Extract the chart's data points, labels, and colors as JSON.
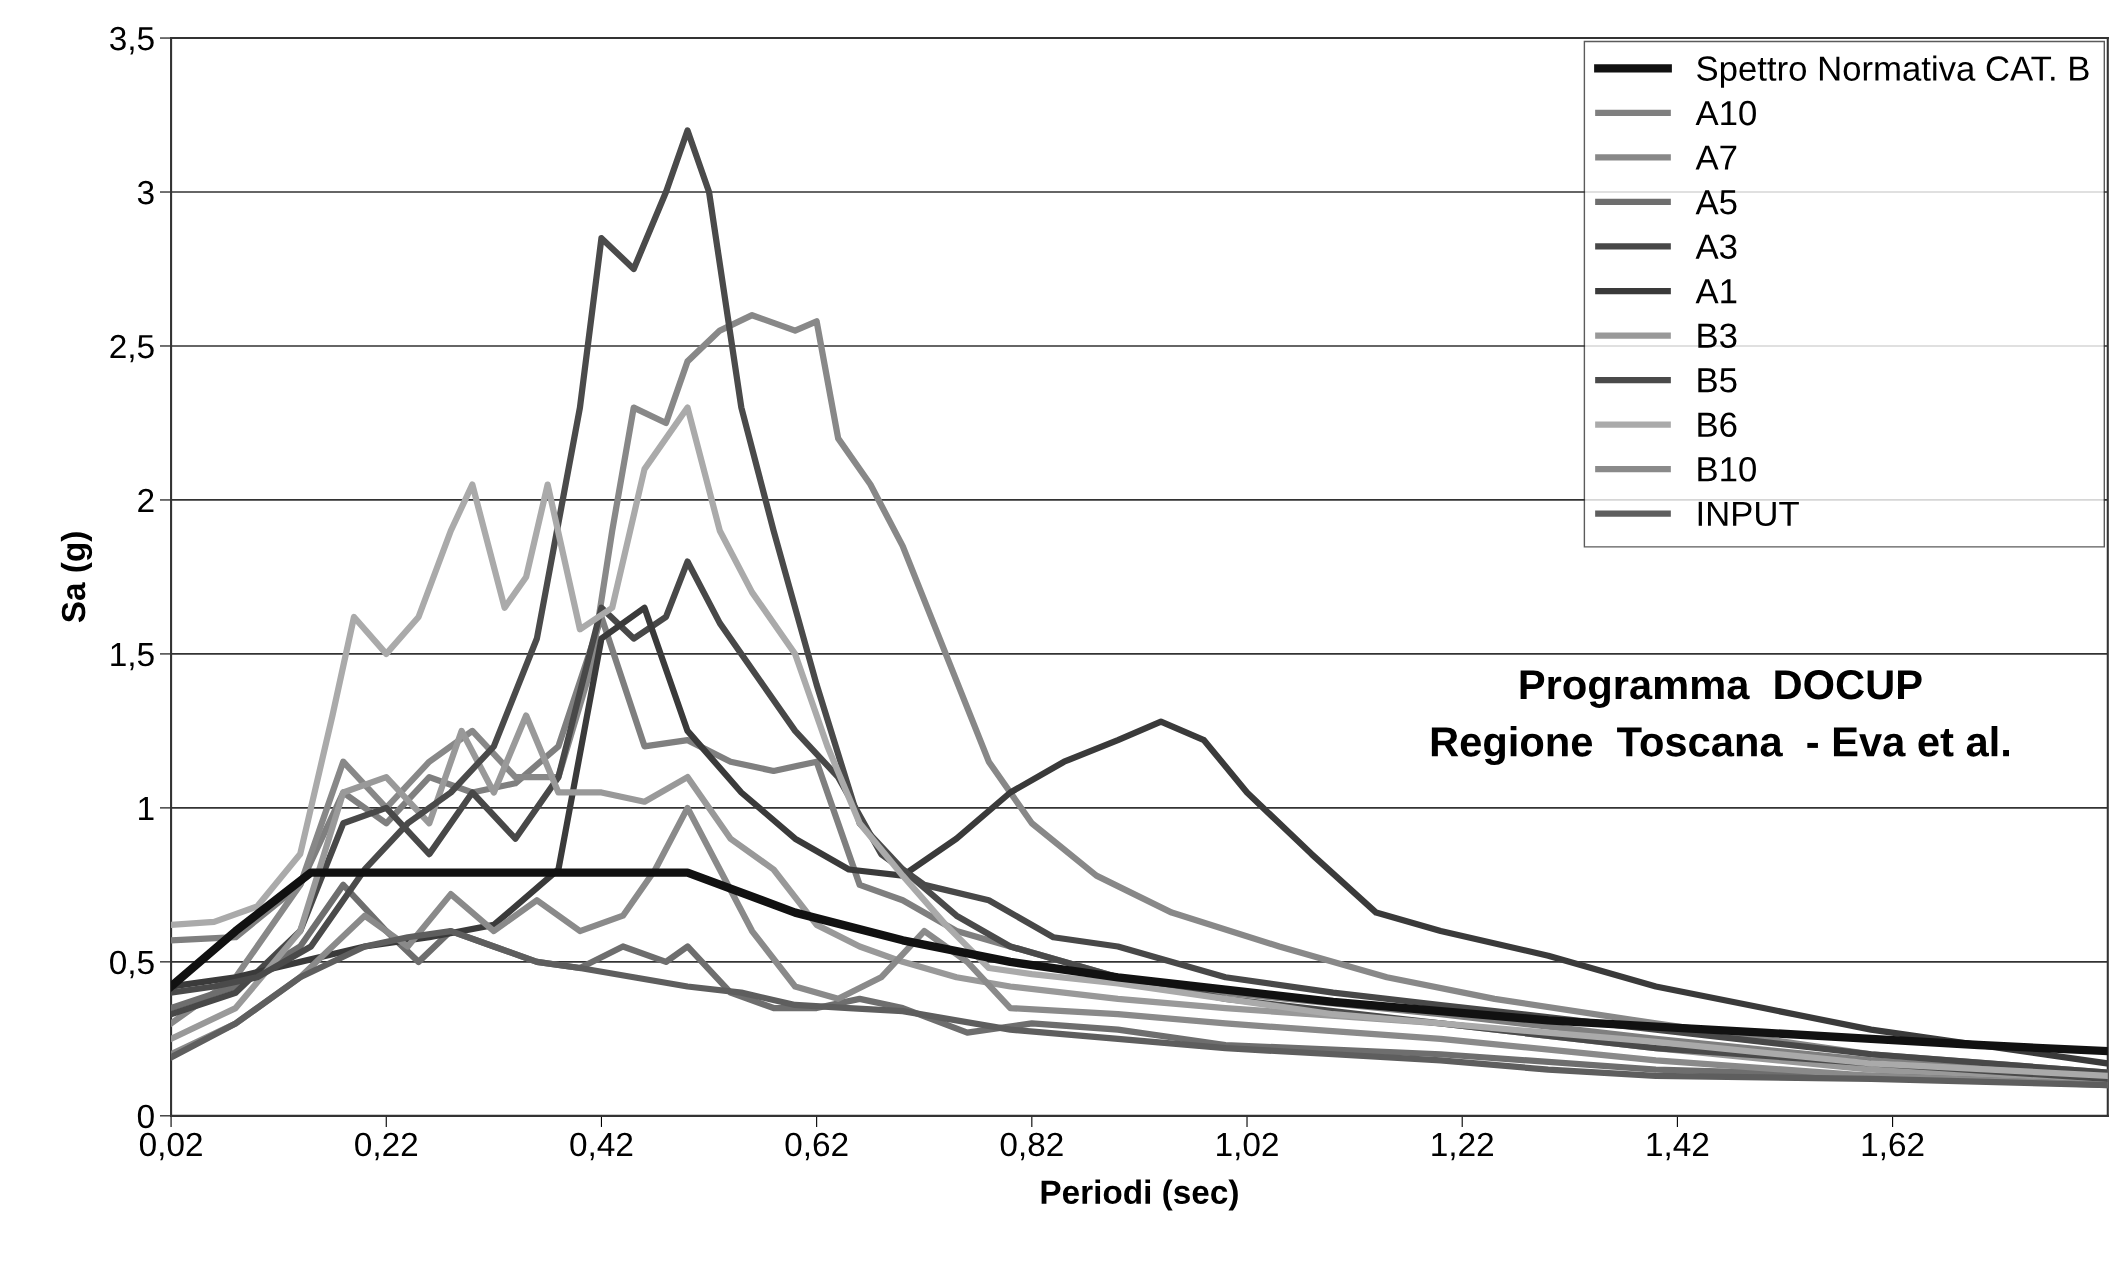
{
  "chart_data": {
    "type": "line",
    "xlabel": "Periodi (sec)",
    "ylabel": "Sa (g)",
    "xlim": [
      0.02,
      1.82
    ],
    "xticks": [
      {
        "value": 0.02,
        "label": "0,02"
      },
      {
        "value": 0.22,
        "label": "0,22"
      },
      {
        "value": 0.42,
        "label": "0,42"
      },
      {
        "value": 0.62,
        "label": "0,62"
      },
      {
        "value": 0.82,
        "label": "0,82"
      },
      {
        "value": 1.02,
        "label": "1,02"
      },
      {
        "value": 1.22,
        "label": "1,22"
      },
      {
        "value": 1.42,
        "label": "1,42"
      },
      {
        "value": 1.62,
        "label": "1,62"
      }
    ],
    "ylim": [
      0,
      3.5
    ],
    "yticks": [
      0,
      {
        "value": 0.5,
        "label": "0,5"
      },
      1,
      {
        "value": 1.5,
        "label": "1,5"
      },
      2,
      {
        "value": 2.5,
        "label": "2,5"
      },
      3,
      {
        "value": 3.5,
        "label": "3,5"
      }
    ],
    "grid": "y",
    "legend": "top right",
    "marker": "none",
    "line_style": "solid",
    "annotations": [
      "Programma  DOCUP\nRegione  Toscana  - Eva et al."
    ],
    "series": [
      {
        "name": "Spettro Normativa CAT. B",
        "color": "#111111",
        "x": [
          0.02,
          0.08,
          0.15,
          0.3,
          0.5,
          0.6,
          0.7,
          0.8,
          0.9,
          1.0,
          1.1,
          1.2,
          1.3,
          1.4,
          1.5,
          1.6,
          1.7,
          1.82
        ],
        "values": [
          0.42,
          0.6,
          0.79,
          0.79,
          0.79,
          0.66,
          0.57,
          0.5,
          0.45,
          0.41,
          0.37,
          0.34,
          0.31,
          0.29,
          0.27,
          0.25,
          0.23,
          0.21
        ]
      },
      {
        "name": "A10",
        "color": "#7f7f7f",
        "x": [
          0.02,
          0.08,
          0.14,
          0.18,
          0.22,
          0.26,
          0.3,
          0.34,
          0.38,
          0.42,
          0.46,
          0.5,
          0.54,
          0.58,
          0.62,
          0.66,
          0.7,
          0.75,
          0.8,
          0.9,
          1.0,
          1.2,
          1.4,
          1.6,
          1.82
        ],
        "values": [
          0.57,
          0.58,
          0.75,
          1.05,
          0.95,
          1.1,
          1.05,
          1.08,
          1.2,
          1.62,
          1.2,
          1.22,
          1.15,
          1.12,
          1.15,
          0.75,
          0.7,
          0.6,
          0.55,
          0.45,
          0.4,
          0.33,
          0.25,
          0.18,
          0.13
        ]
      },
      {
        "name": "A7",
        "color": "#888888",
        "x": [
          0.02,
          0.08,
          0.14,
          0.18,
          0.22,
          0.26,
          0.3,
          0.34,
          0.38,
          0.41,
          0.43,
          0.45,
          0.48,
          0.5,
          0.53,
          0.56,
          0.6,
          0.62,
          0.64,
          0.67,
          0.7,
          0.74,
          0.78,
          0.82,
          0.88,
          0.95,
          1.05,
          1.15,
          1.25,
          1.4,
          1.6,
          1.82
        ],
        "values": [
          0.3,
          0.45,
          0.75,
          1.15,
          1.0,
          1.15,
          1.25,
          1.1,
          1.1,
          1.45,
          1.9,
          2.3,
          2.25,
          2.45,
          2.55,
          2.6,
          2.55,
          2.58,
          2.2,
          2.05,
          1.85,
          1.5,
          1.15,
          0.95,
          0.78,
          0.66,
          0.55,
          0.45,
          0.38,
          0.3,
          0.2,
          0.14
        ]
      },
      {
        "name": "A5",
        "color": "#6e6e6e",
        "x": [
          0.02,
          0.08,
          0.14,
          0.18,
          0.22,
          0.25,
          0.28,
          0.32,
          0.36,
          0.4,
          0.44,
          0.48,
          0.5,
          0.54,
          0.58,
          0.62,
          0.66,
          0.7,
          0.76,
          0.82,
          0.9,
          1.0,
          1.2,
          1.4,
          1.6,
          1.82
        ],
        "values": [
          0.35,
          0.42,
          0.55,
          0.75,
          0.6,
          0.5,
          0.6,
          0.55,
          0.5,
          0.48,
          0.55,
          0.5,
          0.55,
          0.4,
          0.35,
          0.35,
          0.38,
          0.35,
          0.27,
          0.3,
          0.28,
          0.23,
          0.2,
          0.15,
          0.13,
          0.11
        ]
      },
      {
        "name": "A3",
        "color": "#484848",
        "x": [
          0.02,
          0.08,
          0.14,
          0.18,
          0.22,
          0.26,
          0.3,
          0.34,
          0.38,
          0.42,
          0.45,
          0.48,
          0.5,
          0.53,
          0.57,
          0.6,
          0.64,
          0.68,
          0.72,
          0.78,
          0.84,
          0.9,
          1.0,
          1.1,
          1.2,
          1.4,
          1.6,
          1.82
        ],
        "values": [
          0.33,
          0.4,
          0.6,
          0.95,
          1.0,
          0.85,
          1.05,
          0.9,
          1.1,
          1.65,
          1.55,
          1.62,
          1.8,
          1.6,
          1.4,
          1.25,
          1.1,
          0.85,
          0.75,
          0.7,
          0.58,
          0.55,
          0.45,
          0.4,
          0.36,
          0.28,
          0.2,
          0.14
        ]
      },
      {
        "name": "A1",
        "color": "#3a3a3a",
        "x": [
          0.02,
          0.08,
          0.14,
          0.2,
          0.26,
          0.32,
          0.38,
          0.42,
          0.46,
          0.5,
          0.55,
          0.6,
          0.65,
          0.7,
          0.75,
          0.8,
          0.85,
          0.9,
          0.94,
          0.98,
          1.02,
          1.08,
          1.14,
          1.2,
          1.3,
          1.4,
          1.5,
          1.6,
          1.7,
          1.82
        ],
        "values": [
          0.42,
          0.45,
          0.5,
          0.55,
          0.58,
          0.62,
          0.8,
          1.55,
          1.65,
          1.25,
          1.05,
          0.9,
          0.8,
          0.78,
          0.9,
          1.05,
          1.15,
          1.22,
          1.28,
          1.22,
          1.05,
          0.85,
          0.66,
          0.6,
          0.52,
          0.42,
          0.35,
          0.28,
          0.23,
          0.17
        ]
      },
      {
        "name": "B3",
        "color": "#999999",
        "x": [
          0.02,
          0.08,
          0.14,
          0.18,
          0.22,
          0.26,
          0.29,
          0.32,
          0.35,
          0.38,
          0.42,
          0.46,
          0.5,
          0.54,
          0.58,
          0.62,
          0.66,
          0.7,
          0.75,
          0.8,
          0.9,
          1.0,
          1.2,
          1.4,
          1.6,
          1.82
        ],
        "values": [
          0.25,
          0.35,
          0.6,
          1.05,
          1.1,
          0.95,
          1.25,
          1.05,
          1.3,
          1.05,
          1.05,
          1.02,
          1.1,
          0.9,
          0.8,
          0.62,
          0.55,
          0.5,
          0.45,
          0.42,
          0.38,
          0.35,
          0.3,
          0.22,
          0.15,
          0.12
        ]
      },
      {
        "name": "B5",
        "color": "#4a4a4a",
        "x": [
          0.02,
          0.06,
          0.1,
          0.15,
          0.2,
          0.24,
          0.28,
          0.32,
          0.36,
          0.4,
          0.42,
          0.45,
          0.48,
          0.5,
          0.52,
          0.55,
          0.58,
          0.62,
          0.66,
          0.7,
          0.75,
          0.8,
          0.9,
          1.0,
          1.2,
          1.4,
          1.6,
          1.82
        ],
        "values": [
          0.4,
          0.42,
          0.45,
          0.55,
          0.8,
          0.95,
          1.05,
          1.2,
          1.55,
          2.3,
          2.85,
          2.75,
          3.0,
          3.2,
          3.0,
          2.3,
          1.9,
          1.4,
          0.95,
          0.8,
          0.65,
          0.55,
          0.45,
          0.38,
          0.3,
          0.22,
          0.17,
          0.12
        ]
      },
      {
        "name": "B6",
        "color": "#aaaaaa",
        "x": [
          0.02,
          0.06,
          0.1,
          0.14,
          0.17,
          0.19,
          0.22,
          0.25,
          0.28,
          0.3,
          0.33,
          0.35,
          0.37,
          0.4,
          0.43,
          0.46,
          0.5,
          0.53,
          0.56,
          0.6,
          0.63,
          0.66,
          0.7,
          0.74,
          0.78,
          0.82,
          0.9,
          1.0,
          1.1,
          1.2,
          1.4,
          1.6,
          1.82
        ],
        "values": [
          0.62,
          0.63,
          0.68,
          0.85,
          1.3,
          1.62,
          1.5,
          1.62,
          1.9,
          2.05,
          1.65,
          1.75,
          2.05,
          1.58,
          1.65,
          2.1,
          2.3,
          1.9,
          1.7,
          1.5,
          1.2,
          0.95,
          0.78,
          0.62,
          0.48,
          0.46,
          0.43,
          0.38,
          0.33,
          0.3,
          0.24,
          0.17,
          0.13
        ]
      },
      {
        "name": "B10",
        "color": "#8a8a8a",
        "x": [
          0.02,
          0.08,
          0.14,
          0.2,
          0.24,
          0.28,
          0.32,
          0.36,
          0.4,
          0.44,
          0.47,
          0.5,
          0.53,
          0.56,
          0.6,
          0.64,
          0.68,
          0.72,
          0.76,
          0.8,
          0.9,
          1.0,
          1.2,
          1.4,
          1.6,
          1.82
        ],
        "values": [
          0.2,
          0.3,
          0.45,
          0.65,
          0.55,
          0.72,
          0.6,
          0.7,
          0.6,
          0.65,
          0.8,
          1.0,
          0.8,
          0.6,
          0.42,
          0.38,
          0.45,
          0.6,
          0.5,
          0.35,
          0.33,
          0.3,
          0.25,
          0.18,
          0.13,
          0.1
        ]
      },
      {
        "name": "INPUT",
        "color": "#5e5e5e",
        "x": [
          0.02,
          0.08,
          0.14,
          0.2,
          0.24,
          0.28,
          0.32,
          0.36,
          0.4,
          0.45,
          0.5,
          0.55,
          0.6,
          0.65,
          0.7,
          0.8,
          0.9,
          1.0,
          1.1,
          1.2,
          1.3,
          1.4,
          1.6,
          1.82
        ],
        "values": [
          0.19,
          0.3,
          0.45,
          0.55,
          0.58,
          0.6,
          0.55,
          0.5,
          0.48,
          0.45,
          0.42,
          0.4,
          0.36,
          0.35,
          0.34,
          0.28,
          0.25,
          0.22,
          0.2,
          0.18,
          0.15,
          0.13,
          0.12,
          0.1
        ]
      }
    ]
  }
}
